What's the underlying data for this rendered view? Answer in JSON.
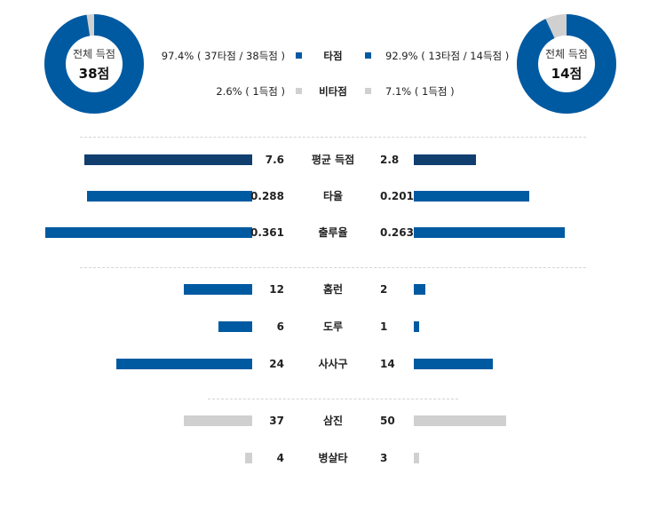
{
  "colors": {
    "dark": "#0f3e6f",
    "blue": "#005aa1",
    "gray": "#d0d0d0"
  },
  "left_team": {
    "total_label": "전체 득점",
    "total_value": "38점",
    "hit_share": 0.974
  },
  "right_team": {
    "total_label": "전체 득점",
    "total_value": "14점",
    "hit_share": 0.929
  },
  "legend": [
    {
      "label": "타점",
      "left": "97.4% ( 37타점 / 38득점 )",
      "right": "92.9% ( 13타점 / 14득점 )",
      "color_key": "blue"
    },
    {
      "label": "비타점",
      "left": "2.6% ( 1득점 )",
      "right": "7.1% ( 1득점 )",
      "color_key": "gray"
    }
  ],
  "chart_data": {
    "type": "bar",
    "categories": [
      "평균 득점",
      "타율",
      "출루율",
      "홈런",
      "도루",
      "사사구",
      "삼진",
      "병살타"
    ],
    "series": [
      {
        "name": "left",
        "values": [
          7.6,
          0.288,
          0.361,
          12,
          6,
          24,
          37,
          4
        ]
      },
      {
        "name": "right",
        "values": [
          2.8,
          0.201,
          0.263,
          2,
          1,
          14,
          50,
          3
        ]
      }
    ],
    "labels_left": [
      "7.6",
      "0.288",
      "0.361",
      "12",
      "6",
      "24",
      "37",
      "4"
    ],
    "labels_right": [
      "2.8",
      "0.201",
      "0.263",
      "2",
      "1",
      "14",
      "50",
      "3"
    ],
    "groups": [
      {
        "categories": [
          "평균 득점"
        ],
        "max": 9.5,
        "color_key": "dark"
      },
      {
        "categories": [
          "타율",
          "출루율"
        ],
        "max": 0.365,
        "color_key": "blue"
      },
      {
        "categories": [
          "홈런",
          "도루",
          "사사구"
        ],
        "max": 37,
        "color_key": "blue"
      },
      {
        "categories": [
          "삼진",
          "병살타"
        ],
        "max": 113,
        "color_key": "gray"
      }
    ]
  }
}
